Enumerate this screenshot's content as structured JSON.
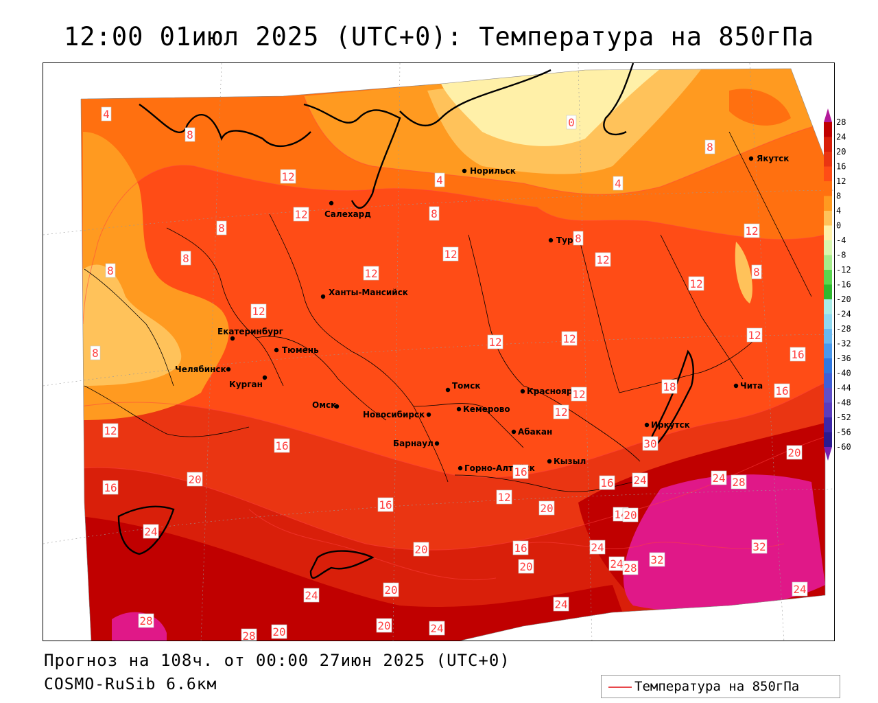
{
  "title": "12:00 01июл 2025 (UTC+0): Температура на 850гПа",
  "footer": {
    "forecast": "Прогноз на 108ч. от 00:00 27июн 2025 (UTC+0)",
    "model": "COSMO-RuSib 6.6км"
  },
  "legend": {
    "label": "Температура на 850гПа",
    "line_color": "#e8474b"
  },
  "colorbar": {
    "ticks": [
      28,
      24,
      20,
      16,
      12,
      8,
      4,
      0,
      -4,
      -8,
      -12,
      -16,
      -20,
      -24,
      -28,
      -32,
      -36,
      -40,
      -44,
      -48,
      -52,
      -56,
      -60
    ],
    "colors": [
      "#c00000",
      "#d91f0a",
      "#ea3512",
      "#ff4c16",
      "#ff7010",
      "#ff9a20",
      "#ffc25a",
      "#fff0a8",
      "#d9f7b0",
      "#a6ec8c",
      "#5bd64f",
      "#2fb82f",
      "#a8ece8",
      "#8fd8f0",
      "#6ab8f0",
      "#4a98ec",
      "#2f78e0",
      "#3f5fd6",
      "#5f4fc8",
      "#5a3cbe",
      "#3c26a8",
      "#2a1a90"
    ],
    "top_arrow_color": "#b41a9a",
    "bottom_arrow_color": "#7820b0"
  },
  "cities": [
    {
      "name": "Норильск",
      "icon": "city-dot-icon"
    },
    {
      "name": "Якутск",
      "icon": "city-dot-icon"
    },
    {
      "name": "Салехард",
      "icon": "city-dot-icon"
    },
    {
      "name": "Тура",
      "icon": "city-dot-icon"
    },
    {
      "name": "Ханты-Мансийск",
      "icon": "city-dot-icon"
    },
    {
      "name": "Екатеринбург",
      "icon": "city-dot-icon"
    },
    {
      "name": "Тюмень",
      "icon": "city-dot-icon"
    },
    {
      "name": "Челябинск",
      "icon": "city-dot-icon"
    },
    {
      "name": "Курган",
      "icon": "city-dot-icon"
    },
    {
      "name": "Омск",
      "icon": "city-dot-icon"
    },
    {
      "name": "Новосибирск",
      "icon": "city-dot-icon"
    },
    {
      "name": "Томск",
      "icon": "city-dot-icon"
    },
    {
      "name": "Кемерово",
      "icon": "city-dot-icon"
    },
    {
      "name": "Красноярск",
      "icon": "city-dot-icon"
    },
    {
      "name": "Абакан",
      "icon": "city-dot-icon"
    },
    {
      "name": "Барнаул",
      "icon": "city-dot-icon"
    },
    {
      "name": "Горно-Алтайск",
      "icon": "city-dot-icon"
    },
    {
      "name": "Кызыл",
      "icon": "city-dot-icon"
    },
    {
      "name": "Иркутск",
      "icon": "city-dot-icon"
    },
    {
      "name": "Чита",
      "icon": "city-dot-icon"
    }
  ],
  "isotherm_labels": [
    "4",
    "8",
    "12",
    "8",
    "4",
    "0",
    "8",
    "4",
    "12",
    "8",
    "12",
    "12",
    "8",
    "8",
    "12",
    "12",
    "12",
    "8",
    "12",
    "12",
    "12",
    "12",
    "8",
    "16",
    "8",
    "18",
    "16",
    "12",
    "12",
    "12",
    "16",
    "16",
    "30",
    "20",
    "16",
    "20",
    "16",
    "24",
    "24",
    "28",
    "16",
    "12",
    "20",
    "14",
    "20",
    "24",
    "20",
    "16",
    "24",
    "24",
    "28",
    "32",
    "20",
    "24",
    "20",
    "32",
    "24",
    "24",
    "28",
    "28",
    "20",
    "20",
    "24"
  ]
}
